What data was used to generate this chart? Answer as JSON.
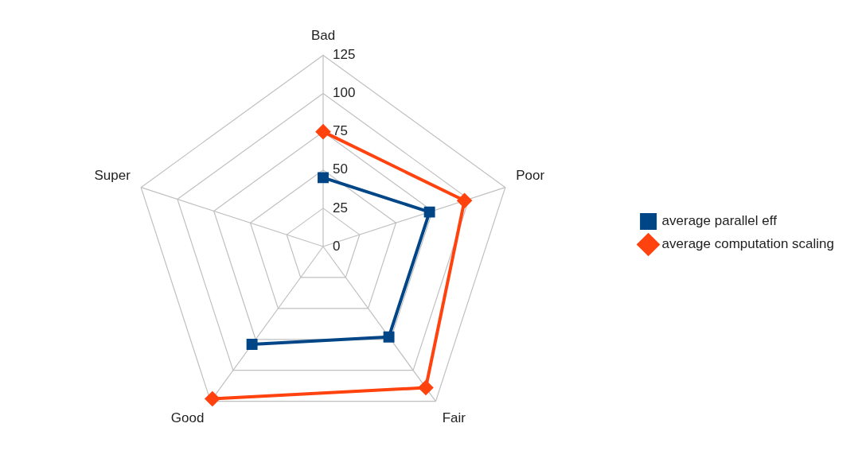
{
  "chart_data": {
    "type": "radar",
    "categories": [
      "Bad",
      "Poor",
      "Fair",
      "Good",
      "Super"
    ],
    "series": [
      {
        "name": "average parallel eff",
        "color": "#004586",
        "marker": "square",
        "values": [
          45,
          73,
          73,
          79,
          null
        ]
      },
      {
        "name": "average computation scaling",
        "color": "#ff420e",
        "marker": "diamond",
        "values": [
          75,
          97,
          114,
          123,
          null
        ]
      }
    ],
    "ylim": [
      0,
      125
    ],
    "yticks": [
      0,
      25,
      50,
      75,
      100,
      125
    ],
    "grid": true,
    "legend": "right"
  }
}
